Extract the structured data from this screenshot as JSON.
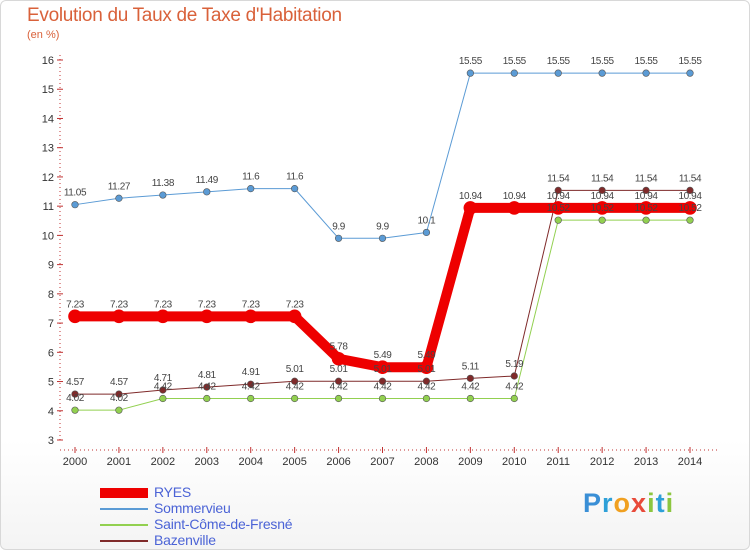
{
  "header": {
    "title": "Evolution du Taux de Taxe d'Habitation",
    "subtitle": "(en %)"
  },
  "logo": {
    "text": "Proxiti",
    "letters": [
      {
        "ch": "P",
        "color": "#3a8fd6"
      },
      {
        "ch": "r",
        "color": "#2ea0d8"
      },
      {
        "ch": "o",
        "color": "#f0a020"
      },
      {
        "ch": "x",
        "color": "#e84a3a"
      },
      {
        "ch": "i",
        "color": "#8cc63f"
      },
      {
        "ch": "t",
        "color": "#2ea0d8"
      },
      {
        "ch": "i",
        "color": "#8cc63f"
      }
    ]
  },
  "chart_data": {
    "type": "line",
    "title": "Evolution du Taux de Taxe d'Habitation",
    "subtitle": "(en %)",
    "x": [
      "2000",
      "2001",
      "2002",
      "2003",
      "2004",
      "2005",
      "2006",
      "2007",
      "2008",
      "2009",
      "2010",
      "2011",
      "2012",
      "2013",
      "2014"
    ],
    "ylim": [
      3,
      16
    ],
    "yticks": [
      3,
      4,
      5,
      6,
      7,
      8,
      9,
      10,
      11,
      12,
      13,
      14,
      15,
      16
    ],
    "grid": false,
    "legend_position": "bottom-left",
    "series": [
      {
        "name": "Sommervieu",
        "color": "#5b9bd5",
        "width": 1,
        "values": [
          11.05,
          11.27,
          11.38,
          11.49,
          11.6,
          11.6,
          9.9,
          9.9,
          10.1,
          15.55,
          15.55,
          15.55,
          15.55,
          15.55,
          15.55
        ],
        "labels": [
          "11.05",
          "11.27",
          "11.38",
          "11.49",
          "11.6",
          "11.6",
          "9.9",
          "9.9",
          "10.1",
          "15.55",
          "15.55",
          "15.55",
          "15.55",
          "15.55",
          "15.55"
        ]
      },
      {
        "name": "Saint-Côme-de-Fresné",
        "color": "#92d050",
        "width": 1,
        "values": [
          4.02,
          4.02,
          4.42,
          4.42,
          4.42,
          4.42,
          4.42,
          4.42,
          4.42,
          4.42,
          4.42,
          10.52,
          10.52,
          10.52,
          10.52
        ],
        "labels": [
          "4.02",
          "4.02",
          "4.42",
          "4.42",
          "4.42",
          "4.42",
          "4.42",
          "4.42",
          "4.42",
          "4.42",
          "4.42",
          "10.52",
          "10.52",
          "10.52",
          "10.52"
        ]
      },
      {
        "name": "Bazenville",
        "color": "#7f2a2a",
        "width": 1,
        "values": [
          4.57,
          4.57,
          4.71,
          4.81,
          4.91,
          5.01,
          5.01,
          5.01,
          5.01,
          5.11,
          5.19,
          11.54,
          11.54,
          11.54,
          11.54
        ],
        "labels": [
          "4.57",
          "4.57",
          "4.71",
          "4.81",
          "4.91",
          "5.01",
          "5.01",
          "5.01",
          "5.01",
          "5.11",
          "5.19",
          "11.54",
          "11.54",
          "11.54",
          "11.54"
        ]
      },
      {
        "name": "RYES",
        "color": "#ee0000",
        "width": 10,
        "values": [
          7.23,
          7.23,
          7.23,
          7.23,
          7.23,
          7.23,
          5.78,
          5.49,
          5.49,
          10.94,
          10.94,
          10.94,
          10.94,
          10.94,
          10.94
        ],
        "labels": [
          "7.23",
          "7.23",
          "7.23",
          "7.23",
          "7.23",
          "7.23",
          "5.78",
          "5.49",
          "5.49",
          "10.94",
          "10.94",
          "10.94",
          "10.94",
          "10.94",
          "10.94"
        ]
      }
    ],
    "legend_order": [
      "RYES",
      "Sommervieu",
      "Saint-Côme-de-Fresné",
      "Bazenville"
    ]
  }
}
